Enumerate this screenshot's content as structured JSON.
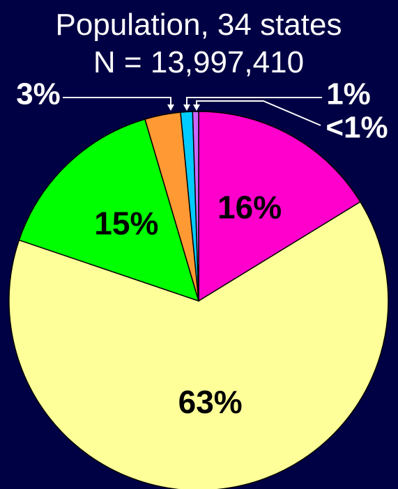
{
  "chart_data": {
    "type": "pie",
    "title": "Population, 34 states",
    "subtitle": "N = 13,997,410",
    "values": [
      16,
      63,
      15,
      3,
      1,
      0.5
    ],
    "value_labels": [
      "16%",
      "63%",
      "15%",
      "3%",
      "1%",
      "<1%"
    ],
    "colors": [
      "#ff00cc",
      "#ffff99",
      "#00ff00",
      "#ff9933",
      "#00ccff",
      "#cc66ff"
    ],
    "start_angle": 0,
    "direction": "clockwise"
  }
}
